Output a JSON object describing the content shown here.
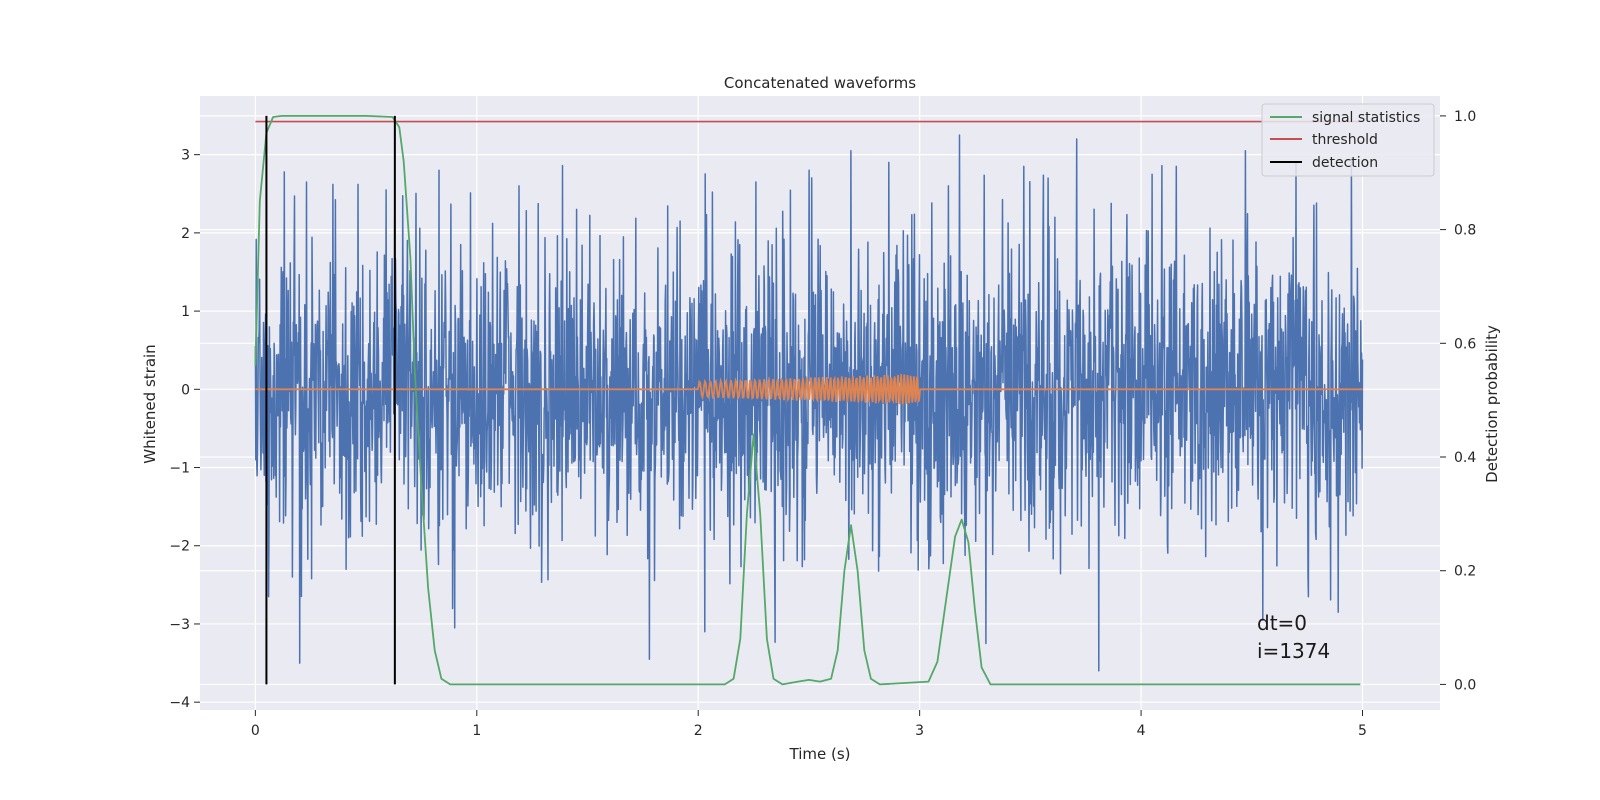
{
  "chart_data": {
    "type": "line",
    "title": "Concatenated waveforms",
    "xlabel": "Time (s)",
    "ylabel_left": "Whitened strain",
    "ylabel_right": "Detection probability",
    "xlim": [
      -0.25,
      5.35
    ],
    "ylim_left": [
      -4.1,
      3.75
    ],
    "ylim_right": [
      -0.045,
      1.035
    ],
    "x_ticks": [
      0,
      1,
      2,
      3,
      4,
      5
    ],
    "y_left_ticks": [
      -4,
      -3,
      -2,
      -1,
      0,
      1,
      2,
      3
    ],
    "y_right_ticks": [
      0.0,
      0.2,
      0.4,
      0.6,
      0.8,
      1.0
    ],
    "y_left_tick_labels": [
      "−4",
      "−3",
      "−2",
      "−1",
      "0",
      "1",
      "2",
      "3"
    ],
    "y_right_tick_labels": [
      "0.0",
      "0.2",
      "0.4",
      "0.6",
      "0.8",
      "1.0"
    ],
    "x_tick_labels": [
      "0",
      "1",
      "2",
      "3",
      "4",
      "5"
    ],
    "grid": true,
    "legend_position": "top-right",
    "legend": [
      "signal statistics",
      "threshold",
      "detection"
    ],
    "colors": {
      "strain": "#4c72b0",
      "template": "#dd8452",
      "signal_statistics": "#55a868",
      "threshold": "#c44e52",
      "detection": "#000000",
      "background": "#eaeaf2",
      "grid": "#ffffff"
    },
    "series": [
      {
        "name": "whitened strain",
        "axis": "left",
        "x_range": [
          0,
          5
        ],
        "description_envelope": "noise roughly ±1 sigma, spikes up to ~3.3 and down to ~-3.6",
        "spikes": [
          {
            "x": 0.05,
            "y": 2.37
          },
          {
            "x": 0.06,
            "y": -2.65
          },
          {
            "x": 0.13,
            "y": 2.78
          },
          {
            "x": 0.2,
            "y": -3.5
          },
          {
            "x": 0.23,
            "y": 2.65
          },
          {
            "x": 0.35,
            "y": 2.62
          },
          {
            "x": 0.41,
            "y": -2.3
          },
          {
            "x": 0.59,
            "y": 2.55
          },
          {
            "x": 0.63,
            "y": 2.2
          },
          {
            "x": 0.83,
            "y": 2.8
          },
          {
            "x": 0.9,
            "y": -3.05
          },
          {
            "x": 1.19,
            "y": 2.6
          },
          {
            "x": 1.45,
            "y": 2.3
          },
          {
            "x": 1.78,
            "y": 2.85
          },
          {
            "x": 1.78,
            "y": -3.45
          },
          {
            "x": 2.03,
            "y": -3.1
          },
          {
            "x": 2.26,
            "y": 2.65
          },
          {
            "x": 2.5,
            "y": 2.8
          },
          {
            "x": 2.69,
            "y": 3.05
          },
          {
            "x": 2.86,
            "y": 2.9
          },
          {
            "x": 3.13,
            "y": 2.6
          },
          {
            "x": 3.18,
            "y": 3.25
          },
          {
            "x": 3.3,
            "y": -3.25
          },
          {
            "x": 3.47,
            "y": 2.85
          },
          {
            "x": 3.58,
            "y": 2.7
          },
          {
            "x": 3.71,
            "y": 3.2
          },
          {
            "x": 3.81,
            "y": -3.6
          },
          {
            "x": 4.05,
            "y": 2.75
          },
          {
            "x": 4.16,
            "y": 2.85
          },
          {
            "x": 4.47,
            "y": 3.05
          },
          {
            "x": 4.55,
            "y": -2.95
          },
          {
            "x": 4.7,
            "y": 2.9
          },
          {
            "x": 4.89,
            "y": -2.85
          },
          {
            "x": 4.95,
            "y": 2.95
          }
        ]
      },
      {
        "name": "injected waveform",
        "axis": "left",
        "description": "chirp 2.0-3.0 s, amplitude rising 0.1 to 0.2",
        "x_start": 2.0,
        "x_end": 3.0,
        "amplitude_start": 0.1,
        "amplitude_end": 0.2
      },
      {
        "name": "signal statistics",
        "axis": "right",
        "points": [
          [
            0.0,
            0.56
          ],
          [
            0.02,
            0.85
          ],
          [
            0.05,
            0.97
          ],
          [
            0.08,
            0.998
          ],
          [
            0.12,
            1.0
          ],
          [
            0.5,
            1.0
          ],
          [
            0.62,
            0.998
          ],
          [
            0.65,
            0.98
          ],
          [
            0.67,
            0.92
          ],
          [
            0.7,
            0.75
          ],
          [
            0.72,
            0.55
          ],
          [
            0.75,
            0.35
          ],
          [
            0.78,
            0.17
          ],
          [
            0.81,
            0.06
          ],
          [
            0.84,
            0.01
          ],
          [
            0.88,
            0.0
          ],
          [
            2.12,
            0.0
          ],
          [
            2.16,
            0.01
          ],
          [
            2.19,
            0.08
          ],
          [
            2.22,
            0.3
          ],
          [
            2.25,
            0.44
          ],
          [
            2.28,
            0.3
          ],
          [
            2.31,
            0.08
          ],
          [
            2.34,
            0.01
          ],
          [
            2.38,
            0.0
          ],
          [
            2.45,
            0.005
          ],
          [
            2.5,
            0.008
          ],
          [
            2.55,
            0.005
          ],
          [
            2.6,
            0.01
          ],
          [
            2.63,
            0.06
          ],
          [
            2.66,
            0.2
          ],
          [
            2.69,
            0.28
          ],
          [
            2.72,
            0.2
          ],
          [
            2.75,
            0.06
          ],
          [
            2.78,
            0.01
          ],
          [
            2.82,
            0.0
          ],
          [
            3.04,
            0.005
          ],
          [
            3.08,
            0.04
          ],
          [
            3.12,
            0.15
          ],
          [
            3.16,
            0.26
          ],
          [
            3.19,
            0.29
          ],
          [
            3.22,
            0.25
          ],
          [
            3.25,
            0.13
          ],
          [
            3.28,
            0.03
          ],
          [
            3.32,
            0.0
          ],
          [
            4.99,
            0.0
          ]
        ]
      },
      {
        "name": "threshold",
        "axis": "right",
        "value": 0.99,
        "x_range": [
          0,
          5
        ]
      },
      {
        "name": "detection",
        "axis": "right",
        "x_values": [
          0.05,
          0.63
        ],
        "y_range": [
          0,
          1.0
        ]
      }
    ],
    "annotations": [
      {
        "text": "dt=0",
        "x": 4.5,
        "y_left": -3.2
      },
      {
        "text": "i=1374",
        "x": 4.5,
        "y_left": -3.55
      }
    ]
  }
}
